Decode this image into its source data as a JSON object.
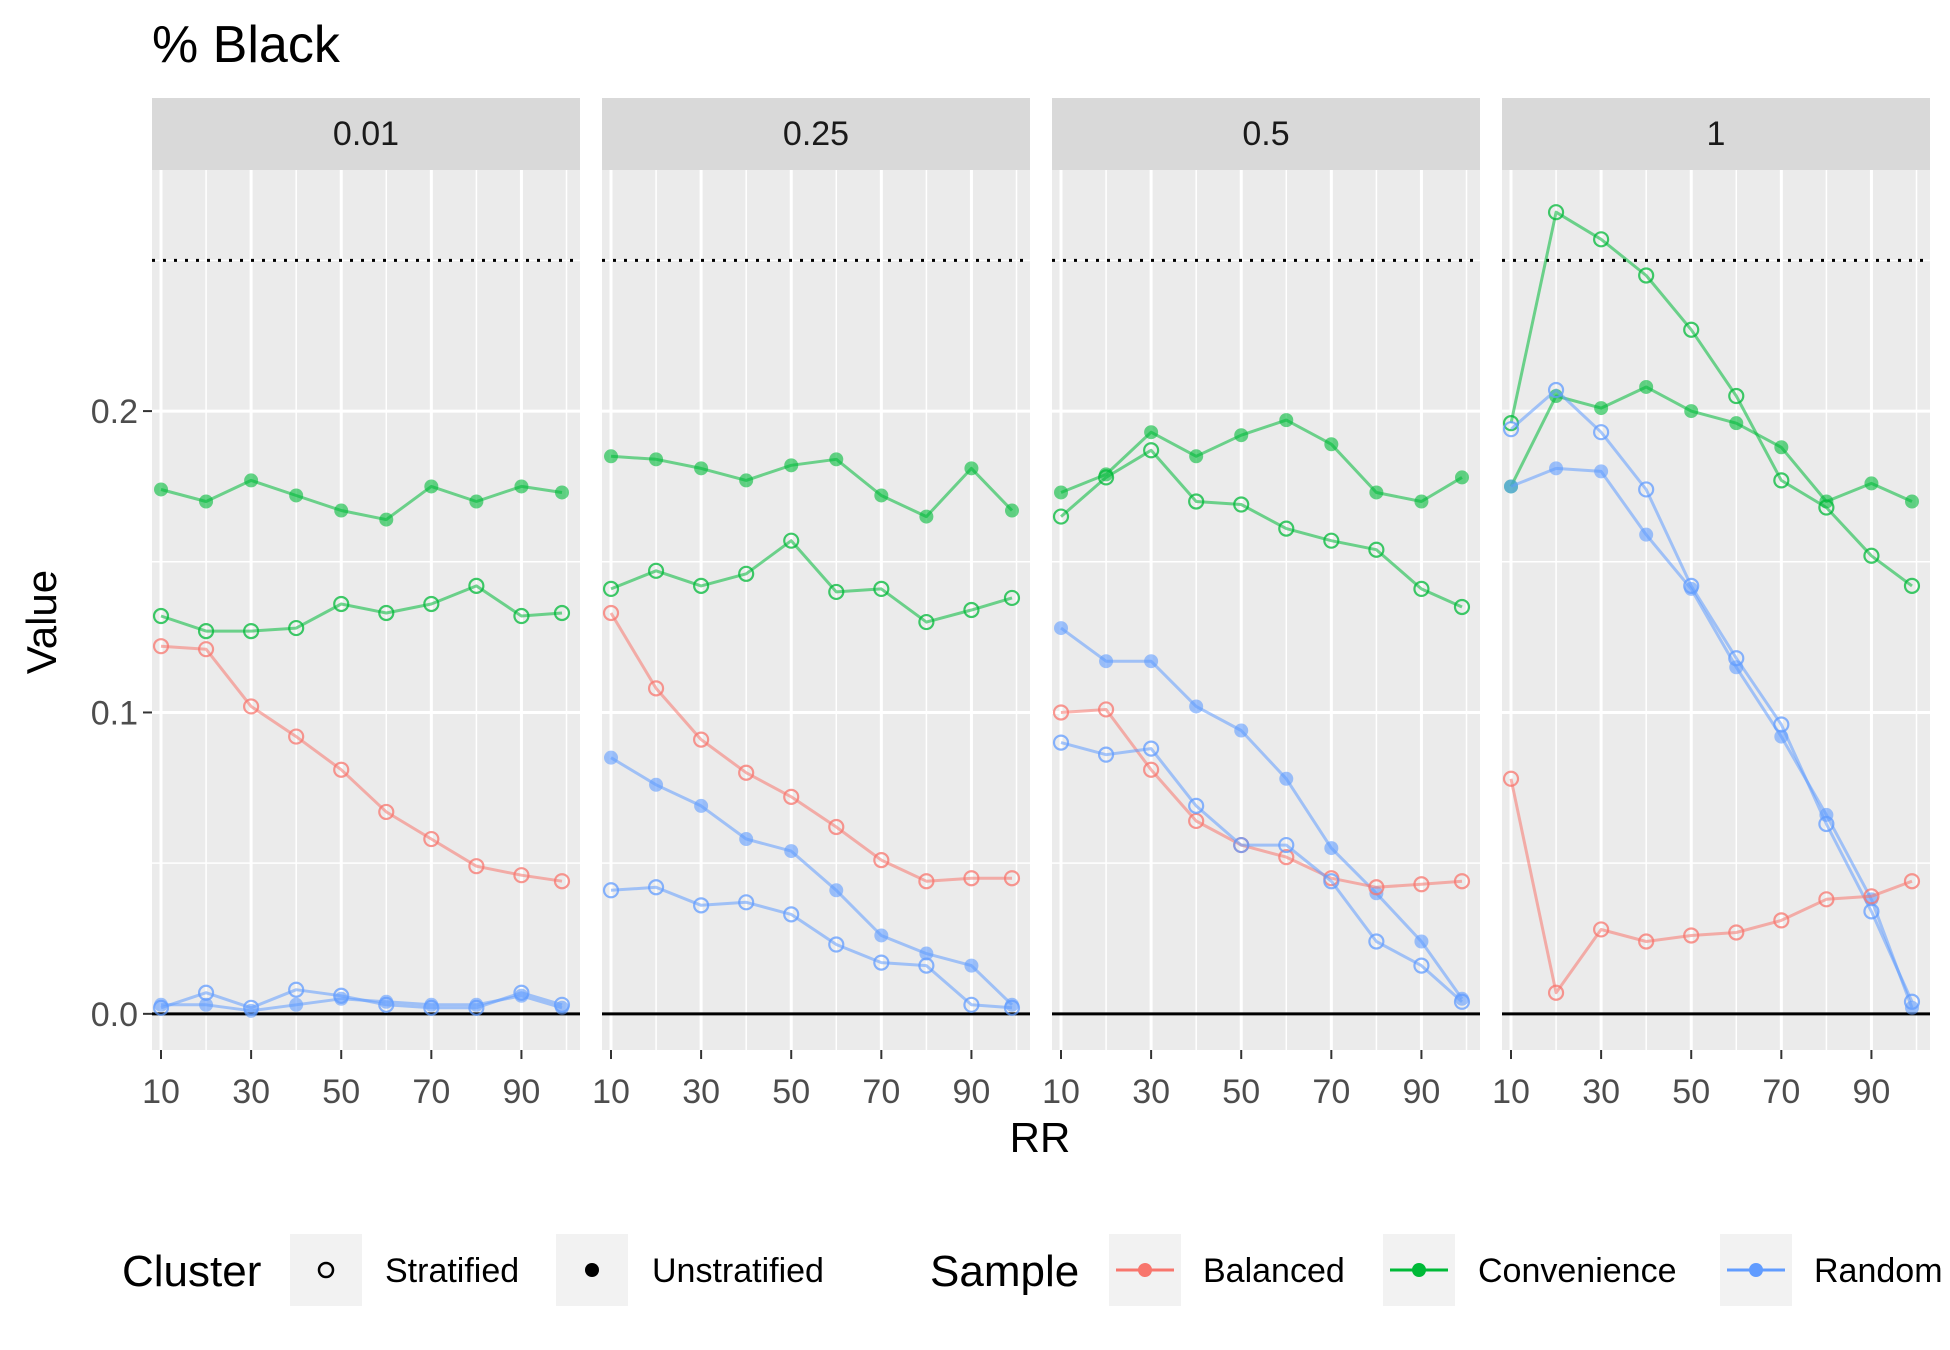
{
  "chart_data": {
    "type": "line",
    "title": "% Black",
    "xlabel": "RR",
    "ylabel": "Value",
    "facets": [
      "0.01",
      "0.25",
      "0.5",
      "1"
    ],
    "x": [
      10,
      20,
      30,
      40,
      50,
      60,
      70,
      80,
      90,
      99
    ],
    "xticks": [
      10,
      30,
      50,
      70,
      90
    ],
    "xlim": [
      8,
      103
    ],
    "ylim": [
      -0.012,
      0.28
    ],
    "yticks": [
      0.0,
      0.1,
      0.2
    ],
    "ytick_labels": [
      "0.0",
      "0.1",
      "0.2"
    ],
    "reference_lines": [
      {
        "y": 0.25,
        "style": "dotted"
      },
      {
        "y": 0.0,
        "style": "solid"
      }
    ],
    "colors": {
      "Balanced": "#F8766D",
      "Convenience": "#00BA38",
      "Random": "#619CFF"
    },
    "legend": {
      "position": "bottom",
      "cluster_title": "Cluster",
      "cluster_items": [
        "Stratified",
        "Unstratified"
      ],
      "sample_title": "Sample",
      "sample_items": [
        "Balanced",
        "Convenience",
        "Random"
      ]
    },
    "panels": [
      {
        "facet": "0.01",
        "series": [
          {
            "sample": "Convenience",
            "cluster": "Unstratified",
            "values": [
              0.174,
              0.17,
              0.177,
              0.172,
              0.167,
              0.164,
              0.175,
              0.17,
              0.175,
              0.173
            ]
          },
          {
            "sample": "Convenience",
            "cluster": "Stratified",
            "values": [
              0.132,
              0.127,
              0.127,
              0.128,
              0.136,
              0.133,
              0.136,
              0.142,
              0.132,
              0.133
            ]
          },
          {
            "sample": "Balanced",
            "cluster": "Stratified",
            "values": [
              0.122,
              0.121,
              0.102,
              0.092,
              0.081,
              0.067,
              0.058,
              0.049,
              0.046,
              0.044
            ]
          },
          {
            "sample": "Random",
            "cluster": "Stratified",
            "values": [
              0.002,
              0.007,
              0.002,
              0.008,
              0.006,
              0.003,
              0.002,
              0.002,
              0.007,
              0.003
            ]
          },
          {
            "sample": "Random",
            "cluster": "Unstratified",
            "values": [
              0.003,
              0.003,
              0.001,
              0.003,
              0.005,
              0.004,
              0.003,
              0.003,
              0.006,
              0.002
            ]
          }
        ]
      },
      {
        "facet": "0.25",
        "series": [
          {
            "sample": "Convenience",
            "cluster": "Unstratified",
            "values": [
              0.185,
              0.184,
              0.181,
              0.177,
              0.182,
              0.184,
              0.172,
              0.165,
              0.181,
              0.167
            ]
          },
          {
            "sample": "Convenience",
            "cluster": "Stratified",
            "values": [
              0.141,
              0.147,
              0.142,
              0.146,
              0.157,
              0.14,
              0.141,
              0.13,
              0.134,
              0.138
            ]
          },
          {
            "sample": "Balanced",
            "cluster": "Stratified",
            "values": [
              0.133,
              0.108,
              0.091,
              0.08,
              0.072,
              0.062,
              0.051,
              0.044,
              0.045,
              0.045
            ]
          },
          {
            "sample": "Random",
            "cluster": "Unstratified",
            "values": [
              0.085,
              0.076,
              0.069,
              0.058,
              0.054,
              0.041,
              0.026,
              0.02,
              0.016,
              0.003
            ]
          },
          {
            "sample": "Random",
            "cluster": "Stratified",
            "values": [
              0.041,
              0.042,
              0.036,
              0.037,
              0.033,
              0.023,
              0.017,
              0.016,
              0.003,
              0.002
            ]
          }
        ]
      },
      {
        "facet": "0.5",
        "series": [
          {
            "sample": "Convenience",
            "cluster": "Unstratified",
            "values": [
              0.173,
              0.179,
              0.193,
              0.185,
              0.192,
              0.197,
              0.189,
              0.173,
              0.17,
              0.178
            ]
          },
          {
            "sample": "Convenience",
            "cluster": "Stratified",
            "values": [
              0.165,
              0.178,
              0.187,
              0.17,
              0.169,
              0.161,
              0.157,
              0.154,
              0.141,
              0.135
            ]
          },
          {
            "sample": "Random",
            "cluster": "Unstratified",
            "values": [
              0.128,
              0.117,
              0.117,
              0.102,
              0.094,
              0.078,
              0.055,
              0.04,
              0.024,
              0.005
            ]
          },
          {
            "sample": "Balanced",
            "cluster": "Stratified",
            "values": [
              0.1,
              0.101,
              0.081,
              0.064,
              0.056,
              0.052,
              0.045,
              0.042,
              0.043,
              0.044
            ]
          },
          {
            "sample": "Random",
            "cluster": "Stratified",
            "values": [
              0.09,
              0.086,
              0.088,
              0.069,
              0.056,
              0.056,
              0.044,
              0.024,
              0.016,
              0.004
            ]
          }
        ]
      },
      {
        "facet": "1",
        "series": [
          {
            "sample": "Convenience",
            "cluster": "Stratified",
            "values": [
              0.196,
              0.266,
              0.257,
              0.245,
              0.227,
              0.205,
              0.177,
              0.168,
              0.152,
              0.142
            ]
          },
          {
            "sample": "Convenience",
            "cluster": "Unstratified",
            "values": [
              0.175,
              0.205,
              0.201,
              0.208,
              0.2,
              0.196,
              0.188,
              0.17,
              0.176,
              0.17
            ]
          },
          {
            "sample": "Random",
            "cluster": "Stratified",
            "values": [
              0.194,
              0.207,
              0.193,
              0.174,
              0.142,
              0.118,
              0.096,
              0.063,
              0.034,
              0.004
            ]
          },
          {
            "sample": "Random",
            "cluster": "Unstratified",
            "values": [
              0.175,
              0.181,
              0.18,
              0.159,
              0.141,
              0.115,
              0.092,
              0.066,
              0.038,
              0.002
            ]
          },
          {
            "sample": "Balanced",
            "cluster": "Stratified",
            "values": [
              0.078,
              0.007,
              0.028,
              0.024,
              0.026,
              0.027,
              0.031,
              0.038,
              0.039,
              0.044
            ]
          }
        ]
      }
    ]
  }
}
